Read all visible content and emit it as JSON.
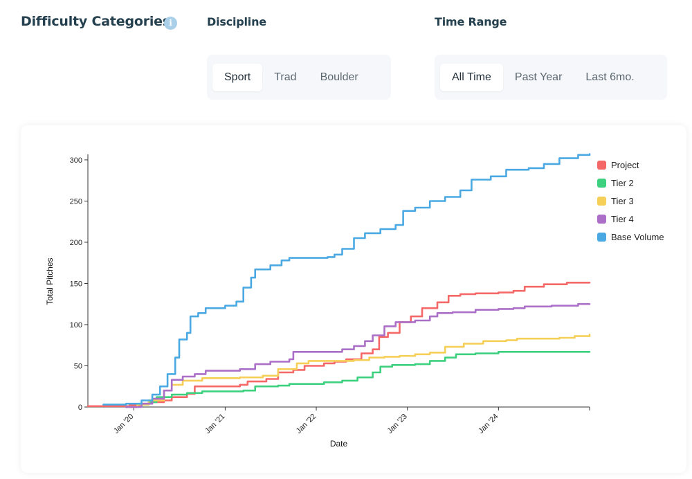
{
  "header": {
    "title": "Difficulty Categories",
    "info_icon": "info-icon",
    "discipline_title": "Discipline",
    "range_title": "Time Range"
  },
  "discipline": {
    "options": [
      "Sport",
      "Trad",
      "Boulder"
    ],
    "selected": "Sport"
  },
  "time_range": {
    "options": [
      "All Time",
      "Past Year",
      "Last 6mo."
    ],
    "selected": "All Time"
  },
  "chart_data": {
    "type": "line",
    "title": "",
    "xlabel": "Date",
    "ylabel": "Total Pitches",
    "ylim": [
      0,
      305
    ],
    "xlim": [
      "2019-07-01",
      "2024-12-31"
    ],
    "yticks": [
      0,
      50,
      100,
      150,
      200,
      250,
      300
    ],
    "xticks": [
      {
        "date": "2020-01-01",
        "label": "Jan '20"
      },
      {
        "date": "2021-01-01",
        "label": "Jan '21"
      },
      {
        "date": "2022-01-01",
        "label": "Jan '22"
      },
      {
        "date": "2023-01-01",
        "label": "Jan '23"
      },
      {
        "date": "2024-01-01",
        "label": "Jan '24"
      }
    ],
    "legend_position": "top-right",
    "grid": false,
    "series": [
      {
        "name": "Project",
        "color": "#f56868",
        "points": [
          [
            "2019-07-01",
            1
          ],
          [
            "2019-12-15",
            2
          ],
          [
            "2020-02-01",
            4
          ],
          [
            "2020-03-01",
            6
          ],
          [
            "2020-05-01",
            8
          ],
          [
            "2020-06-01",
            12
          ],
          [
            "2020-08-01",
            16
          ],
          [
            "2020-09-01",
            25
          ],
          [
            "2021-03-01",
            27
          ],
          [
            "2021-04-01",
            31
          ],
          [
            "2021-06-15",
            34
          ],
          [
            "2021-08-01",
            42
          ],
          [
            "2021-10-01",
            45
          ],
          [
            "2021-11-15",
            50
          ],
          [
            "2022-02-01",
            53
          ],
          [
            "2022-03-15",
            55
          ],
          [
            "2022-05-01",
            58
          ],
          [
            "2022-07-01",
            65
          ],
          [
            "2022-08-15",
            70
          ],
          [
            "2022-09-10",
            85
          ],
          [
            "2022-10-15",
            90
          ],
          [
            "2022-12-01",
            103
          ],
          [
            "2023-01-15",
            110
          ],
          [
            "2023-03-01",
            120
          ],
          [
            "2023-05-01",
            127
          ],
          [
            "2023-06-15",
            135
          ],
          [
            "2023-08-01",
            137
          ],
          [
            "2023-10-01",
            138
          ],
          [
            "2024-01-01",
            139
          ],
          [
            "2024-03-01",
            141
          ],
          [
            "2024-04-15",
            146
          ],
          [
            "2024-07-01",
            149
          ],
          [
            "2024-10-01",
            151
          ],
          [
            "2024-12-31",
            151
          ]
        ]
      },
      {
        "name": "Tier 2",
        "color": "#3dd07f",
        "points": [
          [
            "2019-12-01",
            0
          ],
          [
            "2020-01-15",
            3
          ],
          [
            "2020-03-01",
            6
          ],
          [
            "2020-04-01",
            12
          ],
          [
            "2020-06-01",
            15
          ],
          [
            "2020-08-01",
            17
          ],
          [
            "2020-10-01",
            19
          ],
          [
            "2021-03-15",
            20
          ],
          [
            "2021-05-01",
            25
          ],
          [
            "2021-08-01",
            26
          ],
          [
            "2021-09-15",
            28
          ],
          [
            "2022-02-01",
            30
          ],
          [
            "2022-04-15",
            32
          ],
          [
            "2022-06-15",
            36
          ],
          [
            "2022-08-15",
            42
          ],
          [
            "2022-09-15",
            49
          ],
          [
            "2022-11-01",
            51
          ],
          [
            "2023-02-01",
            52
          ],
          [
            "2023-04-01",
            56
          ],
          [
            "2023-06-01",
            60
          ],
          [
            "2023-07-15",
            64
          ],
          [
            "2023-10-01",
            65
          ],
          [
            "2024-01-01",
            67
          ],
          [
            "2024-12-31",
            67
          ]
        ]
      },
      {
        "name": "Tier 3",
        "color": "#f5cf57",
        "points": [
          [
            "2019-12-01",
            0
          ],
          [
            "2020-01-15",
            3
          ],
          [
            "2020-03-01",
            8
          ],
          [
            "2020-05-01",
            20
          ],
          [
            "2020-06-01",
            27
          ],
          [
            "2020-07-15",
            32
          ],
          [
            "2020-10-01",
            35
          ],
          [
            "2021-03-01",
            36
          ],
          [
            "2021-06-01",
            38
          ],
          [
            "2021-08-01",
            46
          ],
          [
            "2021-10-15",
            53
          ],
          [
            "2021-12-01",
            56
          ],
          [
            "2022-06-01",
            57
          ],
          [
            "2022-08-01",
            60
          ],
          [
            "2022-10-01",
            61
          ],
          [
            "2022-12-01",
            62
          ],
          [
            "2023-02-01",
            64
          ],
          [
            "2023-04-01",
            66
          ],
          [
            "2023-06-01",
            73
          ],
          [
            "2023-08-15",
            77
          ],
          [
            "2023-11-01",
            80
          ],
          [
            "2024-02-01",
            81
          ],
          [
            "2024-03-15",
            83
          ],
          [
            "2024-09-01",
            84
          ],
          [
            "2024-11-01",
            86
          ],
          [
            "2024-12-31",
            88
          ]
        ]
      },
      {
        "name": "Tier 4",
        "color": "#ab6fc7",
        "points": [
          [
            "2019-12-01",
            0
          ],
          [
            "2020-02-01",
            4
          ],
          [
            "2020-03-15",
            10
          ],
          [
            "2020-05-01",
            20
          ],
          [
            "2020-06-01",
            33
          ],
          [
            "2020-07-15",
            37
          ],
          [
            "2020-09-01",
            40
          ],
          [
            "2020-10-15",
            44
          ],
          [
            "2021-03-01",
            46
          ],
          [
            "2021-05-01",
            52
          ],
          [
            "2021-07-01",
            55
          ],
          [
            "2021-09-15",
            58
          ],
          [
            "2021-10-01",
            67
          ],
          [
            "2022-04-15",
            70
          ],
          [
            "2022-06-01",
            74
          ],
          [
            "2022-07-15",
            80
          ],
          [
            "2022-08-15",
            87
          ],
          [
            "2022-10-01",
            98
          ],
          [
            "2022-11-15",
            103
          ],
          [
            "2023-02-01",
            105
          ],
          [
            "2023-04-01",
            110
          ],
          [
            "2023-05-01",
            114
          ],
          [
            "2023-07-01",
            115
          ],
          [
            "2023-10-01",
            118
          ],
          [
            "2024-01-01",
            119
          ],
          [
            "2024-03-01",
            120
          ],
          [
            "2024-04-15",
            122
          ],
          [
            "2024-08-01",
            123
          ],
          [
            "2024-11-15",
            125
          ],
          [
            "2024-12-31",
            125
          ]
        ]
      },
      {
        "name": "Base Volume",
        "color": "#4aa9e2",
        "points": [
          [
            "2019-09-01",
            3
          ],
          [
            "2019-12-01",
            4
          ],
          [
            "2020-02-01",
            8
          ],
          [
            "2020-03-15",
            15
          ],
          [
            "2020-04-15",
            25
          ],
          [
            "2020-05-15",
            40
          ],
          [
            "2020-06-15",
            60
          ],
          [
            "2020-07-01",
            82
          ],
          [
            "2020-08-01",
            90
          ],
          [
            "2020-08-15",
            110
          ],
          [
            "2020-09-15",
            114
          ],
          [
            "2020-10-15",
            120
          ],
          [
            "2021-01-01",
            123
          ],
          [
            "2021-02-15",
            128
          ],
          [
            "2021-03-15",
            145
          ],
          [
            "2021-04-15",
            157
          ],
          [
            "2021-05-01",
            167
          ],
          [
            "2021-07-01",
            172
          ],
          [
            "2021-08-15",
            178
          ],
          [
            "2021-09-15",
            181
          ],
          [
            "2022-02-15",
            182
          ],
          [
            "2022-03-15",
            185
          ],
          [
            "2022-04-15",
            192
          ],
          [
            "2022-06-01",
            205
          ],
          [
            "2022-07-15",
            211
          ],
          [
            "2022-09-15",
            216
          ],
          [
            "2022-11-15",
            221
          ],
          [
            "2022-12-15",
            238
          ],
          [
            "2023-02-01",
            242
          ],
          [
            "2023-04-01",
            250
          ],
          [
            "2023-06-01",
            255
          ],
          [
            "2023-08-01",
            263
          ],
          [
            "2023-09-15",
            276
          ],
          [
            "2023-12-01",
            280
          ],
          [
            "2024-02-01",
            288
          ],
          [
            "2024-05-01",
            290
          ],
          [
            "2024-07-01",
            295
          ],
          [
            "2024-09-01",
            302
          ],
          [
            "2024-11-15",
            306
          ],
          [
            "2024-12-31",
            307
          ]
        ]
      }
    ]
  }
}
